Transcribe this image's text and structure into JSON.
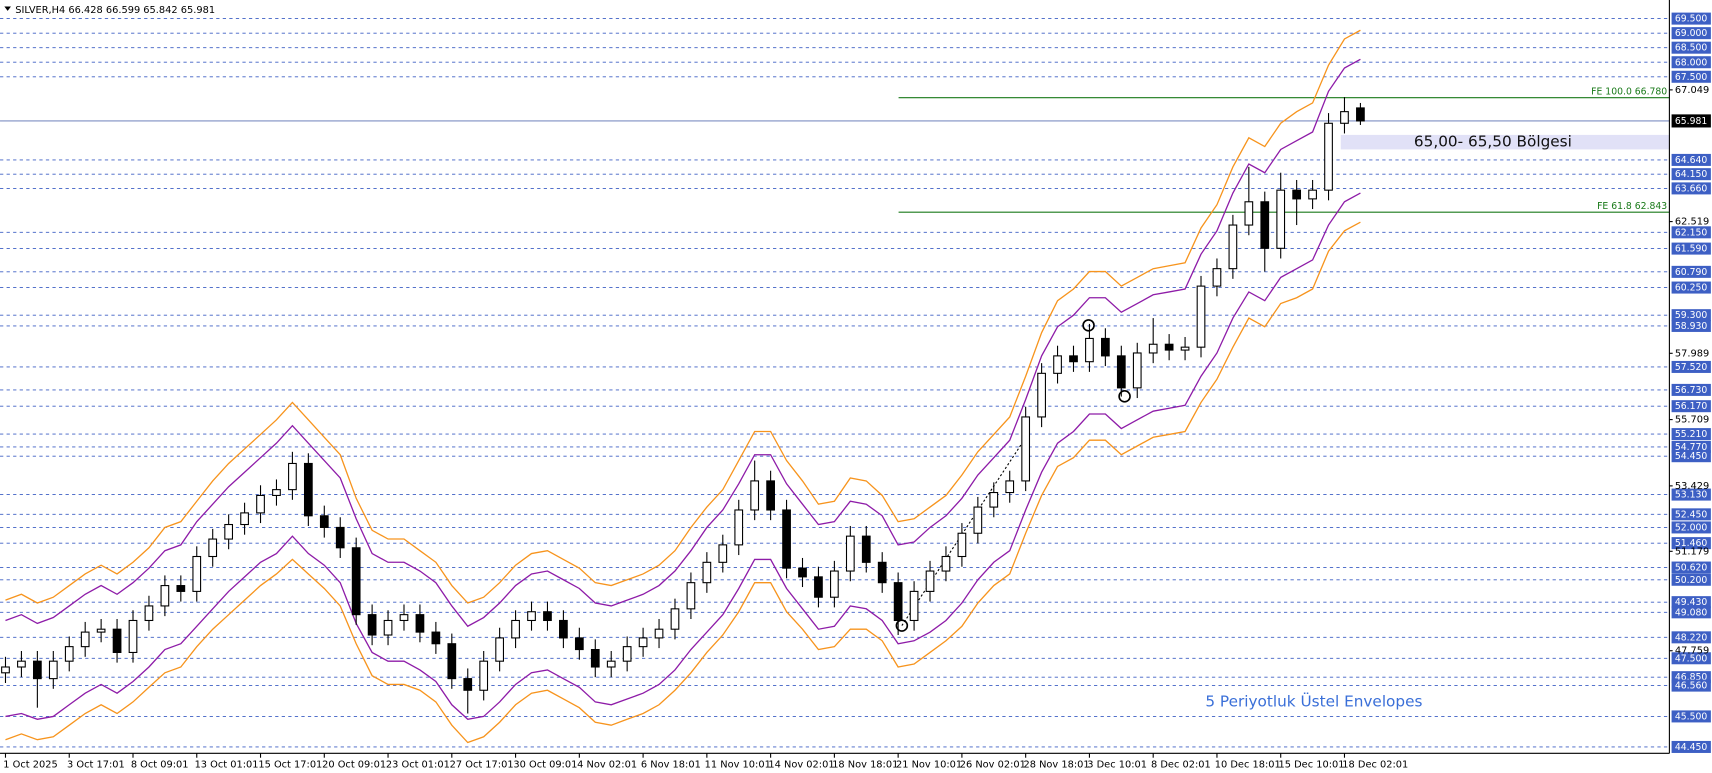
{
  "chart_data": {
    "type": "candlestick",
    "title": "SILVER,H4  66.428 66.599 65.842 65.981",
    "categories": [
      "1 Oct 2025",
      null,
      null,
      null,
      "3 Oct 17:01",
      null,
      null,
      null,
      "8 Oct 09:01",
      null,
      null,
      null,
      "13 Oct 01:01",
      null,
      null,
      null,
      "15 Oct 17:01",
      null,
      null,
      null,
      "20 Oct 09:01",
      null,
      null,
      null,
      "23 Oct 01:01",
      null,
      null,
      null,
      "27 Oct 17:01",
      null,
      null,
      null,
      "30 Oct 09:01",
      null,
      null,
      null,
      "4 Nov 02:01",
      null,
      null,
      null,
      "6 Nov 18:01",
      null,
      null,
      null,
      "11 Nov 10:01",
      null,
      null,
      null,
      "14 Nov 02:01",
      null,
      null,
      null,
      "18 Nov 18:01",
      null,
      null,
      null,
      "21 Nov 10:01",
      null,
      null,
      null,
      "26 Nov 02:01",
      null,
      null,
      null,
      "28 Nov 18:01",
      null,
      null,
      null,
      "3 Dec 10:01",
      null,
      null,
      null,
      "8 Dec 02:01",
      null,
      null,
      null,
      "10 Dec 18:01",
      null,
      null,
      null,
      "15 Dec 10:01",
      null,
      null,
      null,
      "18 Dec 02:01",
      null
    ],
    "open": [
      47.0,
      47.2,
      47.4,
      46.8,
      47.4,
      47.9,
      48.4,
      48.5,
      47.7,
      48.8,
      49.3,
      50.0,
      49.8,
      51.0,
      51.6,
      52.1,
      52.5,
      53.1,
      53.3,
      54.2,
      52.4,
      52.0,
      51.3,
      49.0,
      48.3,
      48.8,
      49.0,
      48.4,
      48.0,
      46.8,
      46.4,
      47.4,
      48.2,
      48.8,
      49.1,
      48.8,
      48.2,
      47.8,
      47.2,
      47.4,
      47.9,
      48.2,
      48.5,
      49.2,
      50.1,
      50.8,
      51.4,
      52.6,
      53.6,
      52.6,
      50.6,
      50.3,
      49.6,
      50.5,
      51.7,
      50.8,
      50.1,
      48.8,
      49.8,
      50.5,
      51.0,
      51.8,
      52.7,
      53.2,
      53.6,
      55.8,
      57.3,
      57.9,
      57.7,
      58.5,
      57.9,
      56.8,
      58.0,
      58.3,
      58.1,
      58.2,
      60.3,
      60.9,
      62.4,
      63.2,
      61.6,
      63.6,
      63.3,
      63.6,
      65.9,
      66.428
    ],
    "high": [
      47.55,
      47.75,
      47.75,
      47.75,
      48.25,
      48.75,
      48.85,
      48.85,
      49.15,
      49.65,
      50.35,
      50.35,
      51.35,
      51.95,
      52.45,
      52.85,
      53.45,
      53.65,
      54.6,
      54.55,
      52.75,
      52.35,
      51.65,
      49.35,
      49.15,
      49.35,
      49.35,
      48.75,
      48.35,
      47.15,
      47.75,
      48.55,
      49.15,
      49.45,
      49.45,
      49.15,
      48.55,
      48.15,
      47.75,
      48.25,
      48.55,
      48.85,
      49.55,
      50.45,
      51.15,
      51.75,
      52.95,
      54.3,
      53.95,
      52.95,
      50.95,
      50.65,
      50.85,
      52.05,
      52.05,
      51.15,
      50.45,
      50.15,
      50.85,
      51.35,
      52.15,
      53.05,
      53.55,
      53.95,
      56.15,
      57.65,
      58.25,
      58.25,
      59.0,
      58.85,
      58.25,
      58.35,
      59.2,
      58.65,
      58.55,
      60.65,
      61.25,
      62.75,
      64.4,
      63.55,
      64.2,
      63.95,
      63.95,
      66.25,
      66.8,
      66.599
    ],
    "low": [
      46.65,
      46.85,
      45.8,
      46.45,
      47.05,
      47.55,
      48.05,
      47.35,
      47.35,
      48.45,
      48.95,
      49.45,
      49.45,
      50.65,
      51.25,
      51.75,
      52.15,
      52.75,
      52.95,
      52.05,
      51.65,
      50.95,
      48.65,
      47.95,
      47.95,
      48.45,
      48.05,
      47.65,
      46.45,
      45.6,
      46.05,
      47.05,
      47.85,
      48.45,
      48.45,
      47.85,
      47.45,
      46.85,
      46.85,
      47.05,
      47.55,
      47.85,
      48.15,
      48.85,
      49.75,
      50.45,
      51.05,
      52.25,
      52.25,
      50.25,
      49.95,
      49.25,
      49.25,
      50.15,
      50.45,
      49.75,
      48.3,
      48.45,
      49.45,
      50.15,
      50.65,
      51.45,
      52.35,
      52.85,
      53.25,
      55.45,
      56.95,
      57.35,
      57.35,
      57.55,
      56.5,
      56.45,
      57.65,
      57.75,
      57.75,
      57.85,
      59.95,
      60.55,
      62.05,
      60.8,
      61.25,
      62.4,
      62.95,
      63.25,
      65.55,
      65.842
    ],
    "close": [
      47.2,
      47.4,
      46.8,
      47.4,
      47.9,
      48.4,
      48.5,
      47.7,
      48.8,
      49.3,
      50.0,
      49.8,
      51.0,
      51.6,
      52.1,
      52.5,
      53.1,
      53.3,
      54.2,
      52.4,
      52.0,
      51.3,
      49.0,
      48.3,
      48.8,
      49.0,
      48.4,
      48.0,
      46.8,
      46.4,
      47.4,
      48.2,
      48.8,
      49.1,
      48.8,
      48.2,
      47.8,
      47.2,
      47.4,
      47.9,
      48.2,
      48.5,
      49.2,
      50.1,
      50.8,
      51.4,
      52.6,
      53.6,
      52.6,
      50.6,
      50.3,
      49.6,
      50.5,
      51.7,
      50.8,
      50.1,
      48.8,
      49.8,
      50.5,
      51.0,
      51.8,
      52.7,
      53.2,
      53.6,
      55.8,
      57.3,
      57.9,
      57.7,
      58.5,
      57.9,
      56.8,
      58.0,
      58.3,
      58.1,
      58.2,
      60.3,
      60.9,
      62.4,
      63.2,
      61.6,
      63.6,
      63.3,
      63.6,
      65.9,
      66.3,
      65.981
    ],
    "envelopes": [
      {
        "color": "#f7941d",
        "values": [
          49.5,
          49.7,
          49.4,
          49.6,
          50.0,
          50.4,
          50.7,
          50.4,
          50.8,
          51.3,
          52.0,
          52.2,
          52.9,
          53.6,
          54.2,
          54.7,
          55.2,
          55.7,
          56.3,
          55.7,
          55.1,
          54.5,
          53.0,
          51.9,
          51.6,
          51.6,
          51.2,
          50.8,
          50.0,
          49.4,
          49.6,
          50.1,
          50.7,
          51.1,
          51.2,
          50.9,
          50.6,
          50.1,
          50.0,
          50.2,
          50.4,
          50.7,
          51.2,
          52.0,
          52.7,
          53.3,
          54.3,
          55.3,
          55.3,
          54.3,
          53.6,
          52.8,
          52.9,
          53.7,
          53.6,
          53.1,
          52.2,
          52.3,
          52.7,
          53.1,
          53.8,
          54.6,
          55.2,
          55.8,
          57.2,
          58.7,
          59.8,
          60.2,
          60.8,
          60.8,
          60.3,
          60.6,
          60.9,
          61.0,
          61.1,
          62.3,
          63.1,
          64.4,
          65.4,
          65.1,
          65.9,
          66.3,
          66.6,
          67.9,
          68.8,
          69.1
        ]
      },
      {
        "color": "#8e1ca8",
        "values": [
          48.8,
          49.0,
          48.7,
          48.9,
          49.3,
          49.7,
          50.0,
          49.7,
          50.1,
          50.6,
          51.2,
          51.4,
          52.2,
          52.8,
          53.4,
          53.9,
          54.4,
          54.9,
          55.5,
          54.9,
          54.3,
          53.7,
          52.3,
          51.1,
          50.8,
          50.8,
          50.5,
          50.1,
          49.3,
          48.6,
          48.9,
          49.4,
          50.0,
          50.4,
          50.5,
          50.2,
          49.9,
          49.4,
          49.3,
          49.5,
          49.7,
          50.0,
          50.5,
          51.2,
          52.0,
          52.6,
          53.5,
          54.5,
          54.5,
          53.5,
          52.8,
          52.1,
          52.2,
          52.9,
          52.8,
          52.4,
          51.4,
          51.5,
          52.0,
          52.4,
          53.0,
          53.8,
          54.4,
          55.0,
          56.4,
          57.9,
          58.9,
          59.3,
          59.9,
          59.9,
          59.4,
          59.7,
          60.0,
          60.1,
          60.2,
          61.4,
          62.2,
          63.5,
          64.5,
          64.2,
          65.0,
          65.3,
          65.6,
          67.0,
          67.8,
          68.1
        ]
      },
      {
        "color": "#8e1ca8",
        "values": [
          45.5,
          45.6,
          45.4,
          45.5,
          45.9,
          46.3,
          46.6,
          46.3,
          46.7,
          47.2,
          47.8,
          48.0,
          48.6,
          49.2,
          49.8,
          50.3,
          50.8,
          51.1,
          51.7,
          51.1,
          50.7,
          50.1,
          48.7,
          47.7,
          47.4,
          47.4,
          47.1,
          46.7,
          45.9,
          45.4,
          45.5,
          46.0,
          46.6,
          47.0,
          47.1,
          46.8,
          46.5,
          46.0,
          45.9,
          46.1,
          46.3,
          46.6,
          47.1,
          47.8,
          48.4,
          49.0,
          49.9,
          50.9,
          50.9,
          49.9,
          49.2,
          48.5,
          48.6,
          49.3,
          49.2,
          48.8,
          48.0,
          48.1,
          48.4,
          48.8,
          49.4,
          50.2,
          50.8,
          51.2,
          52.6,
          53.9,
          54.9,
          55.3,
          55.9,
          55.9,
          55.4,
          55.7,
          56.0,
          56.1,
          56.2,
          57.2,
          58.0,
          59.2,
          60.1,
          59.8,
          60.6,
          60.9,
          61.2,
          62.4,
          63.2,
          63.5
        ]
      },
      {
        "color": "#f7941d",
        "values": [
          44.7,
          44.9,
          44.7,
          44.8,
          45.2,
          45.6,
          45.9,
          45.6,
          46.0,
          46.5,
          47.0,
          47.2,
          47.9,
          48.5,
          49.0,
          49.5,
          50.0,
          50.4,
          50.9,
          50.4,
          49.9,
          49.3,
          48.0,
          46.9,
          46.6,
          46.6,
          46.4,
          46.0,
          45.2,
          44.6,
          44.8,
          45.3,
          45.9,
          46.3,
          46.4,
          46.1,
          45.8,
          45.3,
          45.2,
          45.4,
          45.6,
          45.9,
          46.4,
          47.0,
          47.7,
          48.3,
          49.1,
          50.1,
          50.1,
          49.1,
          48.5,
          47.8,
          47.9,
          48.5,
          48.5,
          48.1,
          47.2,
          47.3,
          47.7,
          48.1,
          48.6,
          49.4,
          50.0,
          50.4,
          51.8,
          53.1,
          54.1,
          54.4,
          55.0,
          55.0,
          54.5,
          54.8,
          55.1,
          55.2,
          55.3,
          56.3,
          57.1,
          58.2,
          59.2,
          58.9,
          59.7,
          59.9,
          60.2,
          61.5,
          62.2,
          62.5
        ]
      }
    ],
    "ylim": [
      44.23,
      70.14
    ],
    "yticks": [
      67.049,
      62.519,
      57.989,
      55.709,
      53.429,
      51.179,
      47.759
    ],
    "levels": [
      {
        "value": 69.5,
        "label": "69.500"
      },
      {
        "value": 69,
        "label": "69.000"
      },
      {
        "value": 68.5,
        "label": "68.500"
      },
      {
        "value": 68,
        "label": "68.000"
      },
      {
        "value": 67.5,
        "label": "67.500"
      },
      {
        "value": 64.64,
        "label": "64.640"
      },
      {
        "value": 64.15,
        "label": "64.150"
      },
      {
        "value": 63.66,
        "label": "63.660"
      },
      {
        "value": 62.15,
        "label": "62.150"
      },
      {
        "value": 61.59,
        "label": "61.590"
      },
      {
        "value": 60.79,
        "label": "60.790"
      },
      {
        "value": 60.25,
        "label": "60.250"
      },
      {
        "value": 59.3,
        "label": "59.300"
      },
      {
        "value": 58.93,
        "label": "58.930"
      },
      {
        "value": 57.52,
        "label": "57.520"
      },
      {
        "value": 56.73,
        "label": "56.730"
      },
      {
        "value": 56.17,
        "label": "56.170"
      },
      {
        "value": 55.21,
        "label": "55.210"
      },
      {
        "value": 54.77,
        "label": "54.770"
      },
      {
        "value": 54.45,
        "label": "54.450"
      },
      {
        "value": 53.13,
        "label": "53.130"
      },
      {
        "value": 52.45,
        "label": "52.450"
      },
      {
        "value": 52,
        "label": "52.000"
      },
      {
        "value": 51.46,
        "label": "51.460"
      },
      {
        "value": 50.62,
        "label": "50.620"
      },
      {
        "value": 50.2,
        "label": "50.200"
      },
      {
        "value": 49.43,
        "label": "49.430"
      },
      {
        "value": 49.08,
        "label": "49.080"
      },
      {
        "value": 48.22,
        "label": "48.220"
      },
      {
        "value": 47.5,
        "label": "47.500"
      },
      {
        "value": 46.85,
        "label": "46.850"
      },
      {
        "value": 46.56,
        "label": "46.560"
      },
      {
        "value": 45.5,
        "label": "45.500"
      },
      {
        "value": 44.45,
        "label": "44.450"
      }
    ],
    "level_color": "#3d5fc4",
    "last_price": 65.981,
    "fib_levels": [
      {
        "value": 66.78,
        "label": "FE 100.0 66.780"
      },
      {
        "value": 62.843,
        "label": "FE 61.8 62.843"
      }
    ],
    "fib_color": "#1a7a1a",
    "zone": {
      "low": 65.0,
      "high": 65.5,
      "label": "65,00- 65,50 Bölgesi",
      "color": "#e1e1f7"
    },
    "annotation": "5 Periyotluk Üstel Envelopes"
  }
}
